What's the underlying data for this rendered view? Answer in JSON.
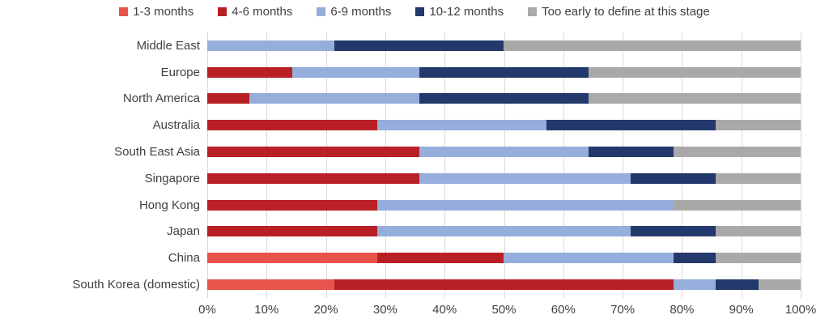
{
  "chart_data": {
    "type": "bar",
    "orientation": "horizontal",
    "stacked": true,
    "unit": "%",
    "title": "",
    "xlabel": "",
    "ylabel": "",
    "xlim": [
      0,
      100
    ],
    "grid": "vertical-light-gray",
    "legend_position": "top-center",
    "categories": [
      "Middle East",
      "Europe",
      "North America",
      "Australia",
      "South East Asia",
      "Singapore",
      "Hong Kong",
      "Japan",
      "China",
      "South Korea (domestic)"
    ],
    "series": [
      {
        "name": "1-3 months",
        "color": "#e8544b",
        "values": [
          0,
          0,
          0,
          0,
          0,
          0,
          0,
          0,
          28.6,
          21.4
        ]
      },
      {
        "name": "4-6 months",
        "color": "#b92025",
        "values": [
          0,
          14.3,
          7.1,
          28.6,
          35.7,
          35.7,
          28.6,
          28.6,
          21.4,
          57.2
        ]
      },
      {
        "name": "6-9 months",
        "color": "#96aedc",
        "values": [
          21.4,
          21.4,
          28.6,
          28.5,
          28.6,
          35.7,
          50.0,
          42.8,
          28.6,
          7.1
        ]
      },
      {
        "name": "10-12 months",
        "color": "#24396b",
        "values": [
          28.6,
          28.6,
          28.6,
          28.6,
          14.3,
          14.3,
          0,
          14.3,
          7.1,
          7.2
        ]
      },
      {
        "name": "Too early to define at this stage",
        "color": "#a9a9a9",
        "values": [
          50.0,
          35.7,
          35.7,
          14.3,
          21.4,
          14.3,
          21.4,
          14.3,
          14.3,
          7.1
        ]
      }
    ],
    "x_ticks": [
      "0%",
      "10%",
      "20%",
      "30%",
      "40%",
      "50%",
      "60%",
      "70%",
      "80%",
      "90%",
      "100%"
    ],
    "colors": {
      "grid": "#d9d9d9",
      "text": "#404040",
      "background": "#ffffff"
    }
  }
}
